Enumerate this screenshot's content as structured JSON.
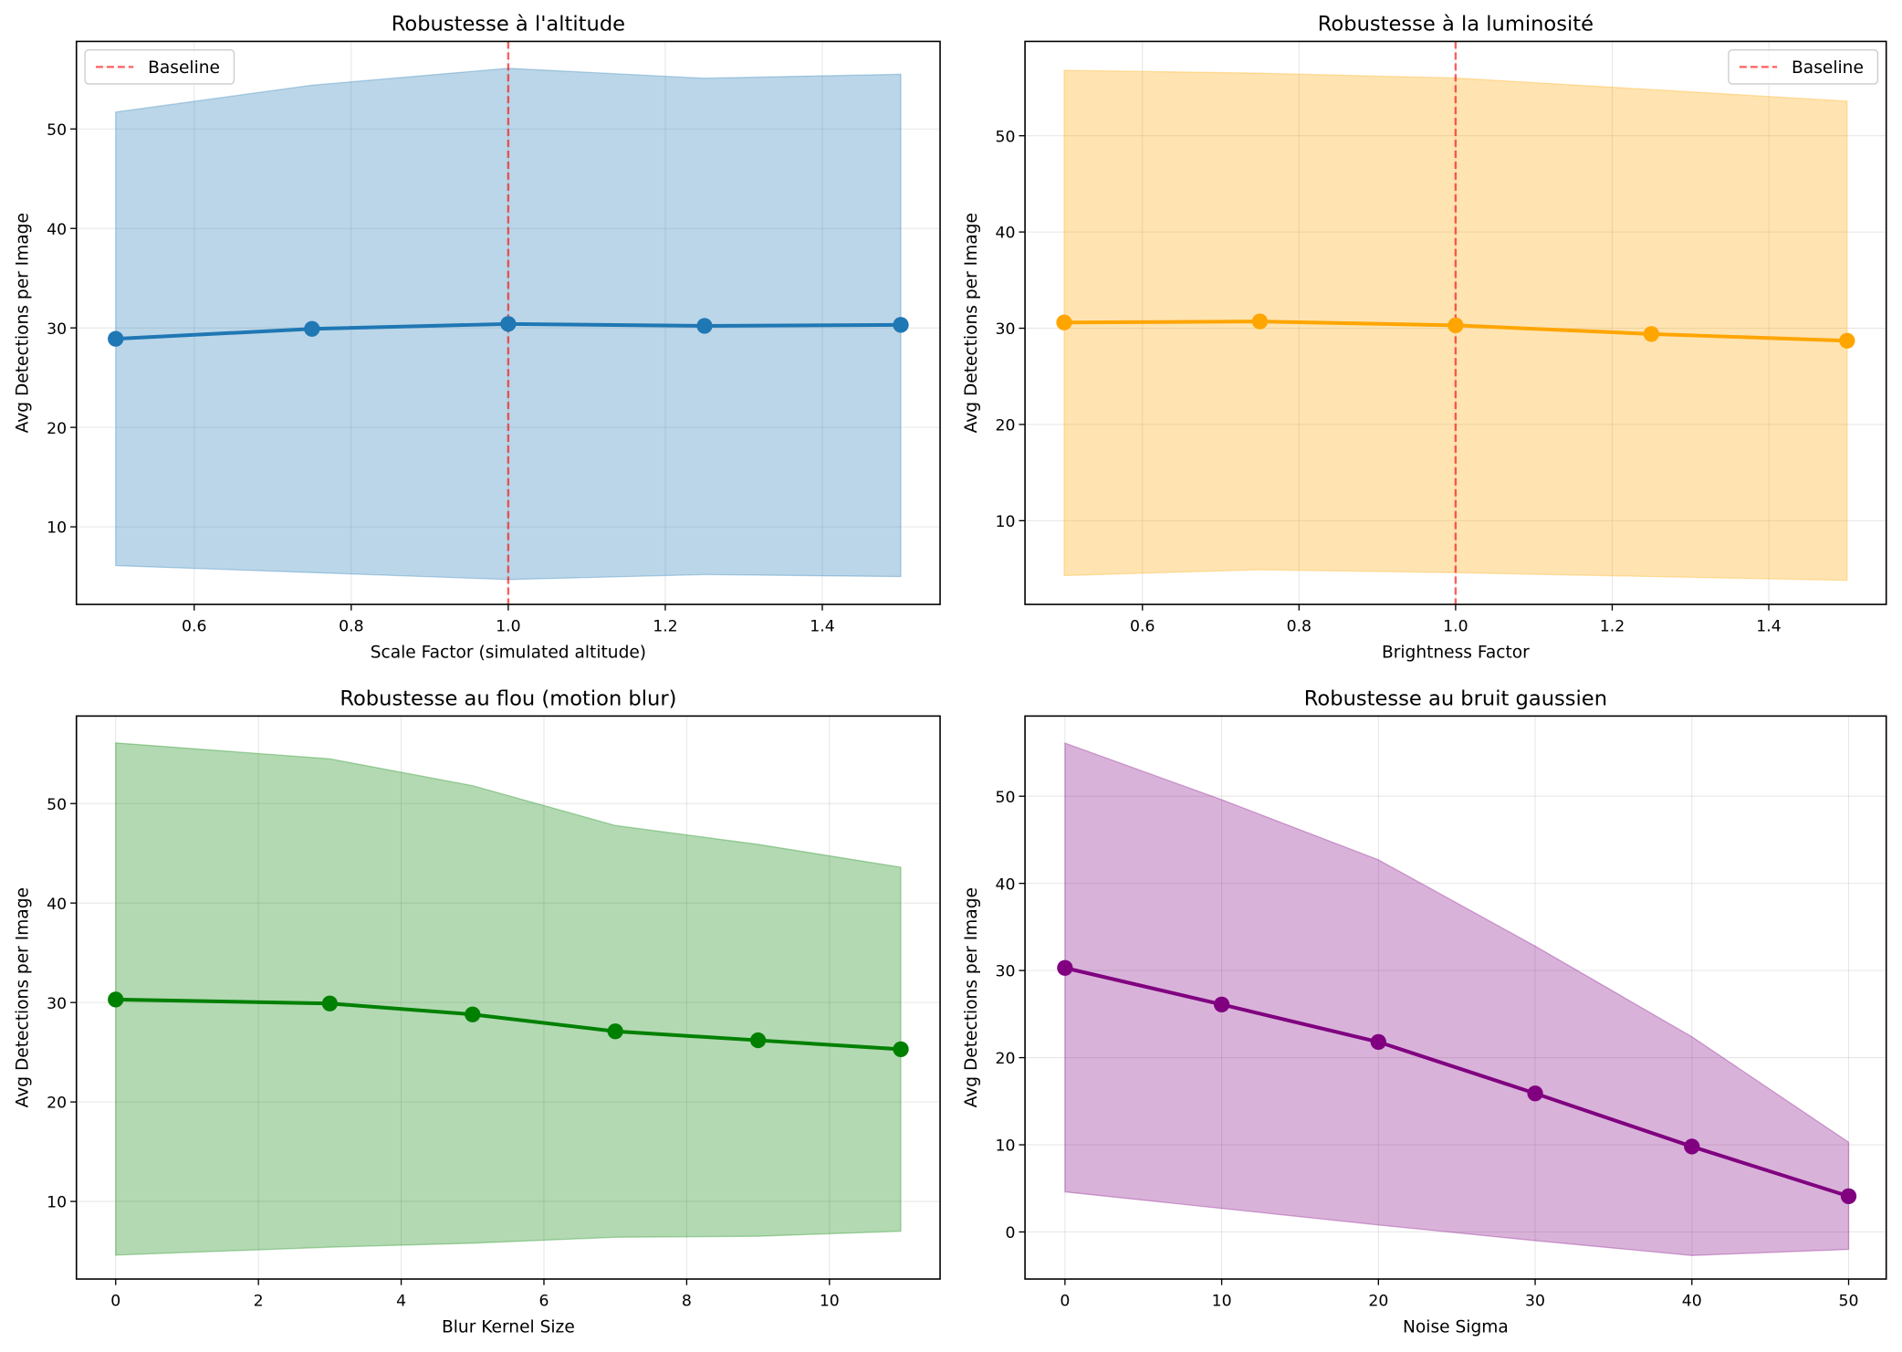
{
  "chart_data": [
    {
      "type": "line",
      "title": "Robustesse à l'altitude",
      "xlabel": "Scale Factor (simulated altitude)",
      "ylabel": "Avg Detections per Image",
      "x": [
        0.5,
        0.75,
        1.0,
        1.25,
        1.5
      ],
      "series": [
        {
          "values": [
            28.9,
            29.9,
            30.4,
            30.2,
            30.3
          ],
          "band_upper": [
            51.7,
            54.4,
            56.1,
            55.1,
            55.5
          ],
          "band_lower": [
            6.1,
            5.4,
            4.7,
            5.2,
            5.0
          ]
        }
      ],
      "xlim": [
        0.45,
        1.55
      ],
      "ylim": [
        2.2,
        58.8
      ],
      "xticks": [
        0.6,
        0.8,
        1.0,
        1.2,
        1.4
      ],
      "xtick_labels": [
        "0.6",
        "0.8",
        "1.0",
        "1.2",
        "1.4"
      ],
      "yticks": [
        10,
        20,
        30,
        40,
        50
      ],
      "ytick_labels": [
        "10",
        "20",
        "30",
        "40",
        "50"
      ],
      "baseline": {
        "x": 1.0,
        "label": "Baseline",
        "color": "#ff0000"
      },
      "legend": "top-left",
      "color": "#1f77b4",
      "grid": true
    },
    {
      "type": "line",
      "title": "Robustesse à la luminosité",
      "xlabel": "Brightness Factor",
      "ylabel": "Avg Detections per Image",
      "x": [
        0.5,
        0.75,
        1.0,
        1.25,
        1.5
      ],
      "series": [
        {
          "values": [
            30.6,
            30.7,
            30.3,
            29.4,
            28.7
          ],
          "band_upper": [
            56.8,
            56.5,
            56.0,
            54.8,
            53.6
          ],
          "band_lower": [
            4.3,
            4.9,
            4.6,
            4.2,
            3.8
          ]
        }
      ],
      "xlim": [
        0.45,
        1.55
      ],
      "ylim": [
        1.3,
        59.8
      ],
      "xticks": [
        0.6,
        0.8,
        1.0,
        1.2,
        1.4
      ],
      "xtick_labels": [
        "0.6",
        "0.8",
        "1.0",
        "1.2",
        "1.4"
      ],
      "yticks": [
        10,
        20,
        30,
        40,
        50
      ],
      "ytick_labels": [
        "10",
        "20",
        "30",
        "40",
        "50"
      ],
      "baseline": {
        "x": 1.0,
        "label": "Baseline",
        "color": "#ff0000"
      },
      "legend": "top-right",
      "color": "#ffa500",
      "grid": true
    },
    {
      "type": "line",
      "title": "Robustesse au flou (motion blur)",
      "xlabel": "Blur Kernel Size",
      "ylabel": "Avg Detections per Image",
      "x": [
        0,
        3,
        5,
        7,
        9,
        11
      ],
      "series": [
        {
          "values": [
            30.3,
            29.9,
            28.8,
            27.1,
            26.2,
            25.3
          ],
          "band_upper": [
            56.1,
            54.5,
            51.8,
            47.8,
            45.9,
            43.6
          ],
          "band_lower": [
            4.6,
            5.4,
            5.8,
            6.4,
            6.5,
            7.0
          ]
        }
      ],
      "xlim": [
        -0.55,
        11.55
      ],
      "ylim": [
        2.2,
        58.8
      ],
      "xticks": [
        0,
        2,
        4,
        6,
        8,
        10
      ],
      "xtick_labels": [
        "0",
        "2",
        "4",
        "6",
        "8",
        "10"
      ],
      "yticks": [
        10,
        20,
        30,
        40,
        50
      ],
      "ytick_labels": [
        "10",
        "20",
        "30",
        "40",
        "50"
      ],
      "color": "#008000",
      "grid": true
    },
    {
      "type": "line",
      "title": "Robustesse au bruit gaussien",
      "xlabel": "Noise Sigma",
      "ylabel": "Avg Detections per Image",
      "x": [
        0,
        10,
        20,
        30,
        40,
        50
      ],
      "series": [
        {
          "values": [
            30.3,
            26.1,
            21.8,
            15.9,
            9.8,
            4.1
          ],
          "band_upper": [
            56.1,
            49.6,
            42.7,
            32.8,
            22.4,
            10.3
          ],
          "band_lower": [
            4.6,
            2.7,
            0.8,
            -1.0,
            -2.7,
            -2.0
          ]
        }
      ],
      "xlim": [
        -2.55,
        52.4
      ],
      "ylim": [
        -5.4,
        59.2
      ],
      "xticks": [
        0,
        10,
        20,
        30,
        40,
        50
      ],
      "xtick_labels": [
        "0",
        "10",
        "20",
        "30",
        "40",
        "50"
      ],
      "yticks": [
        0,
        10,
        20,
        30,
        40,
        50
      ],
      "ytick_labels": [
        "0",
        "10",
        "20",
        "30",
        "40",
        "50"
      ],
      "color": "#800080",
      "grid": true
    }
  ]
}
